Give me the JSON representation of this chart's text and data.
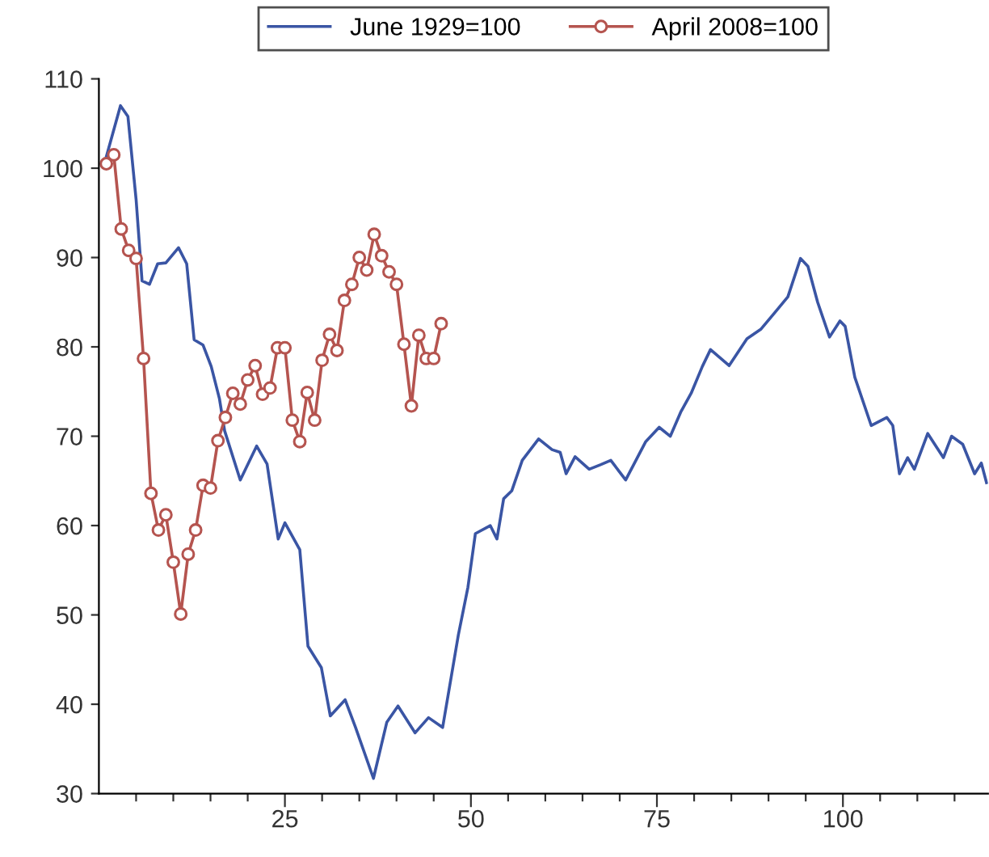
{
  "chart_data": {
    "type": "line",
    "xlim": [
      0,
      119.5
    ],
    "ylim": [
      30,
      110
    ],
    "xticks": [
      {
        "value": 5,
        "label": null
      },
      {
        "value": 10,
        "label": null
      },
      {
        "value": 15,
        "label": null
      },
      {
        "value": 20,
        "label": null
      },
      25,
      {
        "value": 30,
        "label": null
      },
      {
        "value": 35,
        "label": null
      },
      {
        "value": 40,
        "label": null
      },
      {
        "value": 45,
        "label": null
      },
      50,
      {
        "value": 55,
        "label": null
      },
      {
        "value": 60,
        "label": null
      },
      {
        "value": 65,
        "label": null
      },
      {
        "value": 70,
        "label": null
      },
      75,
      {
        "value": 80,
        "label": null
      },
      {
        "value": 85,
        "label": null
      },
      {
        "value": 90,
        "label": null
      },
      {
        "value": 95,
        "label": null
      },
      100,
      {
        "value": 105,
        "label": null
      },
      {
        "value": 110,
        "label": null
      },
      {
        "value": 115,
        "label": null
      }
    ],
    "yticks": [
      30,
      40,
      50,
      60,
      70,
      80,
      90,
      100,
      110
    ],
    "grid": false,
    "legend": "top",
    "series": [
      {
        "name": "June 1929=100",
        "color": "#3a55a4",
        "marker": "none",
        "line_style": "solid",
        "x": [
          1.0,
          2.9,
          3.9,
          5.0,
          5.8,
          6.8,
          7.9,
          9.0,
          10.7,
          11.8,
          12.8,
          14.0,
          15.1,
          16.2,
          16.9,
          19.0,
          21.2,
          22.6,
          24.1,
          25.0,
          27.0,
          28.1,
          29.9,
          31.1,
          33.1,
          34.5,
          36.9,
          38.7,
          40.2,
          42.5,
          44.3,
          46.2,
          48.3,
          49.6,
          50.6,
          52.6,
          53.5,
          54.4,
          55.5,
          56.9,
          59.1,
          60.9,
          62.0,
          62.8,
          64.0,
          65.9,
          67.4,
          68.8,
          70.8,
          73.5,
          75.3,
          76.8,
          78.2,
          79.6,
          81.1,
          82.2,
          84.7,
          87.1,
          89.0,
          90.8,
          92.6,
          94.3,
          95.3,
          96.6,
          98.2,
          99.6,
          100.3,
          101.6,
          103.8,
          105.9,
          106.7,
          107.6,
          108.7,
          109.6,
          111.4,
          113.5,
          114.6,
          116.1,
          117.7,
          118.6,
          119.3
        ],
        "values": [
          101.3,
          107.0,
          105.8,
          96.5,
          87.4,
          87.0,
          89.3,
          89.4,
          91.1,
          89.3,
          80.8,
          80.2,
          77.8,
          74.2,
          70.6,
          65.1,
          68.9,
          66.9,
          58.5,
          60.3,
          57.3,
          46.5,
          44.1,
          38.7,
          40.5,
          37.4,
          31.7,
          38.0,
          39.8,
          36.8,
          38.5,
          37.4,
          47.7,
          53.1,
          59.1,
          60.0,
          58.5,
          63.0,
          63.9,
          67.3,
          69.7,
          68.5,
          68.2,
          65.8,
          67.7,
          66.3,
          66.8,
          67.3,
          65.1,
          69.4,
          71.0,
          70.0,
          72.7,
          74.8,
          77.8,
          79.7,
          77.9,
          80.9,
          82.0,
          83.8,
          85.6,
          89.9,
          89.0,
          85.0,
          81.1,
          82.9,
          82.3,
          76.6,
          71.2,
          72.1,
          71.2,
          65.8,
          67.6,
          66.3,
          70.3,
          67.6,
          70.0,
          69.1,
          65.8,
          67.0,
          64.8
        ]
      },
      {
        "name": "April 2008=100",
        "color": "#b5544f",
        "marker": "circle",
        "line_style": "solid",
        "x": [
          1,
          2,
          3,
          4,
          5,
          6,
          7,
          8,
          9,
          10,
          11,
          12,
          13,
          14,
          15,
          16,
          17,
          18,
          19,
          20,
          21,
          22,
          23,
          24,
          25,
          26,
          27,
          28,
          29,
          30,
          31,
          32,
          33,
          34,
          35,
          36,
          37,
          38,
          39,
          40,
          41,
          42,
          43,
          44,
          45,
          46
        ],
        "values": [
          100.5,
          101.5,
          93.2,
          90.8,
          89.9,
          78.7,
          63.6,
          59.5,
          61.2,
          55.9,
          50.1,
          56.8,
          59.5,
          64.5,
          64.2,
          69.5,
          72.1,
          74.8,
          73.6,
          76.3,
          77.9,
          74.7,
          75.4,
          79.9,
          79.9,
          71.8,
          69.4,
          74.9,
          71.8,
          78.5,
          81.4,
          79.6,
          85.2,
          87.0,
          90.0,
          88.6,
          92.6,
          90.2,
          88.4,
          87.0,
          80.3,
          73.4,
          81.3,
          78.7,
          78.7,
          82.6
        ]
      }
    ]
  }
}
